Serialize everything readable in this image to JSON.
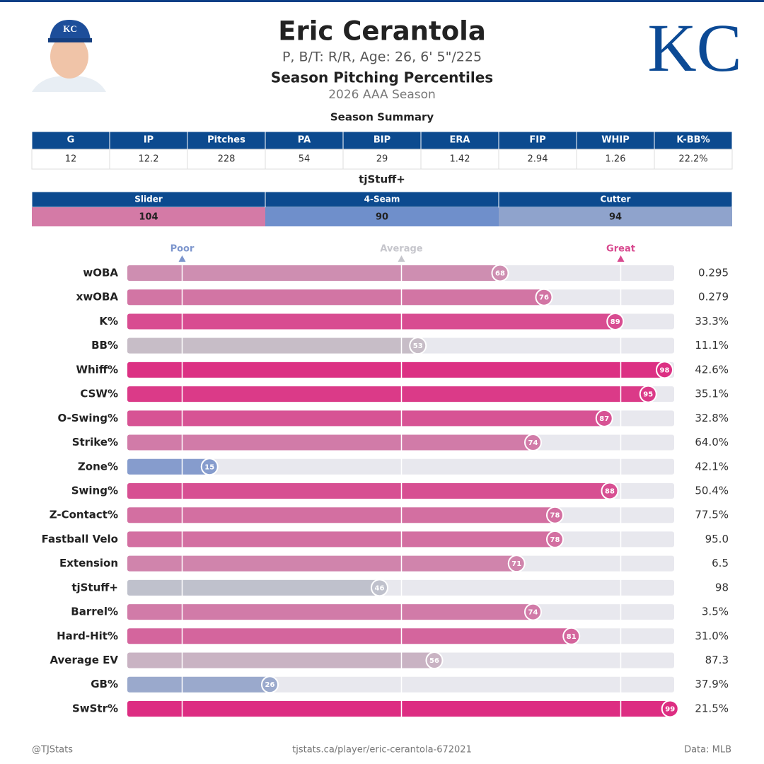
{
  "header": {
    "name": "Eric Cerantola",
    "bio": "P, B/T: R/R, Age: 26, 6' 5\"/225",
    "title": "Season Pitching Percentiles",
    "season": "2026 AAA Season",
    "logo": "KC"
  },
  "season_summary": {
    "title": "Season Summary",
    "columns": [
      "G",
      "IP",
      "Pitches",
      "PA",
      "BIP",
      "ERA",
      "FIP",
      "WHIP",
      "K-BB%"
    ],
    "rows": [
      [
        "12",
        "12.2",
        "228",
        "54",
        "29",
        "1.42",
        "2.94",
        "1.26",
        "22.2%"
      ]
    ]
  },
  "tjstuff": {
    "title": "tjStuff+",
    "columns": [
      "Slider",
      "4-Seam",
      "Cutter"
    ],
    "values": [
      104,
      90,
      94
    ],
    "colors": [
      "#d47aa6",
      "#6f8fcb",
      "#8fa3cc"
    ]
  },
  "chart_data": {
    "type": "bar",
    "orientation": "horizontal",
    "categories": [
      "wOBA",
      "xwOBA",
      "K%",
      "BB%",
      "Whiff%",
      "CSW%",
      "O-Swing%",
      "Strike%",
      "Zone%",
      "Swing%",
      "Z-Contact%",
      "Fastball Velo",
      "Extension",
      "tjStuff+",
      "Barrel%",
      "Hard-Hit%",
      "Average EV",
      "GB%",
      "SwStr%"
    ],
    "values": [
      68,
      76,
      89,
      53,
      98,
      95,
      87,
      74,
      15,
      88,
      78,
      78,
      71,
      46,
      74,
      81,
      56,
      26,
      99
    ],
    "stats": [
      "0.295",
      "0.279",
      "33.3%",
      "11.1%",
      "42.6%",
      "35.1%",
      "32.8%",
      "64.0%",
      "42.1%",
      "50.4%",
      "77.5%",
      "95.0",
      "6.5",
      "98",
      "3.5%",
      "31.0%",
      "87.3",
      "37.9%",
      "21.5%"
    ],
    "xlim": [
      0,
      100
    ],
    "xticks": [
      {
        "value": 10,
        "label": "Poor"
      },
      {
        "value": 50,
        "label": "Average"
      },
      {
        "value": 90,
        "label": "Great"
      }
    ],
    "colormap": [
      "#6b8acd",
      "#c6c6cc",
      "#dd2a80"
    ],
    "grid": true
  },
  "footer": {
    "left": "@TJStats",
    "center": "tjstats.ca/player/eric-cerantola-672021",
    "right": "Data: MLB"
  }
}
